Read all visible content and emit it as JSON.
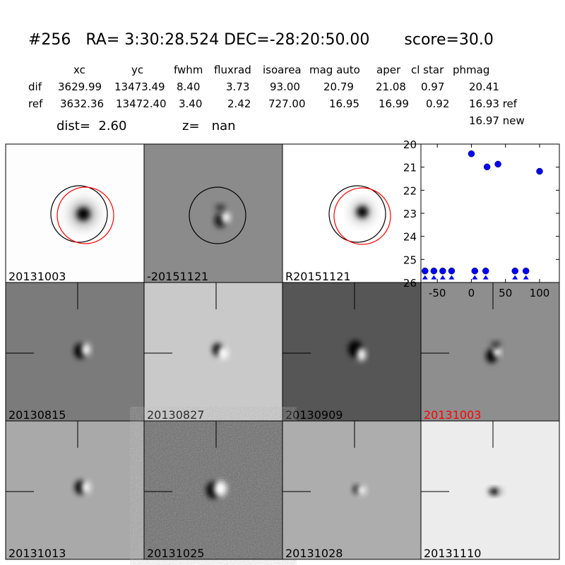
{
  "header": {
    "title": "#256   RA= 3:30:28.524 DEC=-28:20:50.00       score=30.0"
  },
  "table": {
    "columns": [
      "xc",
      "yc",
      "fwhm",
      "fluxrad",
      "isoarea",
      "mag auto",
      "aper",
      "cl star",
      "phmag"
    ],
    "rows": [
      [
        "dif",
        "3629.99",
        "13473.49",
        "8.40",
        "3.73",
        "93.00",
        "20.79",
        "21.08",
        "0.97",
        "20.41"
      ],
      [
        "ref",
        "3632.36",
        "13472.40",
        "3.40",
        "2.42",
        "727.00",
        "16.95",
        "16.99",
        "0.92",
        "16.93 ref"
      ]
    ],
    "extra": "16.97 new",
    "distance": "dist=  2.60",
    "redshift": "z=   nan"
  },
  "panels": [
    {
      "label": "20131003"
    },
    {
      "label": "-20151121"
    },
    {
      "label": "R20151121"
    },
    {
      "label": "20130815"
    },
    {
      "label": "20130827"
    },
    {
      "label": "20130909"
    },
    {
      "label": "20131003",
      "label_color": "#ff0000"
    },
    {
      "label": "20131013"
    },
    {
      "label": "20131025"
    },
    {
      "label": "20131028"
    },
    {
      "label": "20131110"
    }
  ],
  "chart_data": {
    "type": "scatter",
    "xlim": [
      -74,
      129
    ],
    "ylim": [
      20,
      26
    ],
    "y_inverted": true,
    "xticks": [
      -50,
      0,
      50,
      100
    ],
    "yticks": [
      20,
      21,
      22,
      23,
      24,
      25,
      26
    ],
    "series": [
      {
        "color": "#0000ff",
        "marker": "circle",
        "x": [
          0,
          23,
          39,
          100
        ],
        "values": [
          20.42,
          20.99,
          20.87,
          21.18
        ]
      },
      {
        "color": "#0000ff",
        "marker": "limit",
        "x": [
          -68,
          -55,
          -42,
          -29,
          5,
          21,
          64,
          80
        ],
        "values": [
          25.5,
          25.5,
          25.5,
          25.5,
          25.5,
          25.5,
          25.5,
          25.5
        ]
      }
    ]
  }
}
